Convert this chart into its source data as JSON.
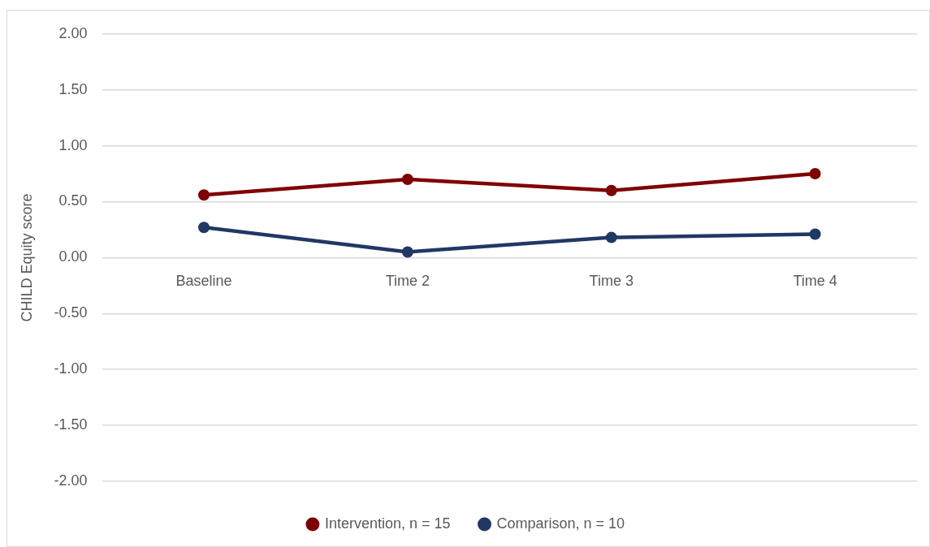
{
  "chart_data": {
    "type": "line",
    "ylabel": "CHILD Equity score",
    "categories": [
      "Baseline",
      "Time 2",
      "Time 3",
      "Time 4"
    ],
    "series": [
      {
        "name": "Intervention, n = 15",
        "color": "#7f0000",
        "values": [
          0.56,
          0.7,
          0.6,
          0.75
        ]
      },
      {
        "name": "Comparison, n = 10",
        "color": "#203864",
        "values": [
          0.27,
          0.05,
          0.18,
          0.21
        ]
      }
    ],
    "ylim": [
      -2,
      2
    ],
    "yticks": [
      {
        "value": 2,
        "label": "2.00"
      },
      {
        "value": 1.5,
        "label": "1.50"
      },
      {
        "value": 1,
        "label": "1.00"
      },
      {
        "value": 0.5,
        "label": "0.50"
      },
      {
        "value": 0,
        "label": "0.00"
      },
      {
        "value": -0.5,
        "label": "-0.50"
      },
      {
        "value": -1,
        "label": "-1.00"
      },
      {
        "value": -1.5,
        "label": "-1.50"
      },
      {
        "value": -2,
        "label": "-2.00"
      }
    ],
    "grid": "y",
    "legend": "bottom",
    "marker": "circle",
    "line_style": "solid"
  }
}
